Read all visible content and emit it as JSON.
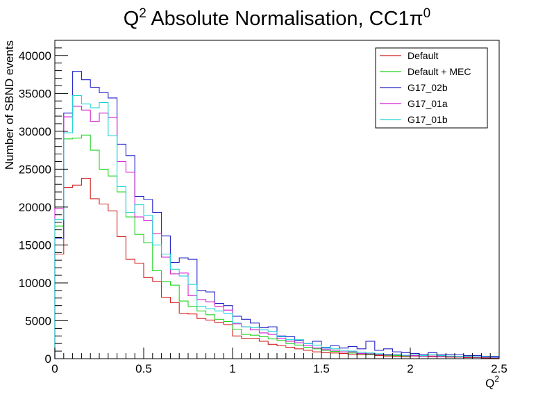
{
  "chart_data": {
    "type": "line",
    "step": true,
    "title_main": "Q",
    "title_sup": "2",
    "title_rest": " Absolute Normalisation, CC1π",
    "title_sup2": "0",
    "ylabel": "Number of SBND events",
    "xlabel_main": "Q",
    "xlabel_sup": "2",
    "xlim": [
      0,
      2.5
    ],
    "ylim": [
      0,
      42000
    ],
    "x_ticks": [
      "0",
      "0.5",
      "1",
      "1.5",
      "2",
      "2.5"
    ],
    "x_tick_values": [
      0,
      0.5,
      1,
      1.5,
      2,
      2.5
    ],
    "y_ticks": [
      "0",
      "5000",
      "10000",
      "15000",
      "20000",
      "25000",
      "30000",
      "35000",
      "40000"
    ],
    "y_tick_values": [
      0,
      5000,
      10000,
      15000,
      20000,
      25000,
      30000,
      35000,
      40000
    ],
    "bin_width": 0.05,
    "legend_position": "top-right",
    "series": [
      {
        "name": "Default",
        "color": "#d42222",
        "values": [
          13800,
          22600,
          22900,
          23800,
          21100,
          20400,
          19500,
          16100,
          13100,
          12600,
          10700,
          10200,
          8100,
          7400,
          6000,
          5900,
          5300,
          5100,
          4800,
          4500,
          3000,
          2700,
          2700,
          2300,
          1900,
          1700,
          1500,
          1300,
          1100,
          900,
          800,
          750,
          700,
          600,
          500,
          500,
          400,
          350,
          300,
          250,
          350,
          300,
          250,
          250,
          200,
          200,
          150,
          150,
          100,
          100
        ]
      },
      {
        "name": "Default + MEC",
        "color": "#22d422",
        "values": [
          17500,
          29000,
          29100,
          29500,
          27500,
          25000,
          24100,
          22000,
          18700,
          16400,
          15300,
          11600,
          10200,
          9700,
          7600,
          6900,
          6300,
          5800,
          5200,
          4900,
          3900,
          3200,
          3100,
          2900,
          2600,
          2400,
          2000,
          1800,
          1500,
          1300,
          1100,
          950,
          900,
          750,
          650,
          550,
          500,
          450,
          400,
          350,
          400,
          350,
          350,
          300,
          300,
          250,
          250,
          200,
          200,
          150
        ]
      },
      {
        "name": "G17_02b",
        "color": "#2222c8",
        "values": [
          15900,
          32400,
          37900,
          36800,
          35800,
          35100,
          34400,
          28300,
          26800,
          21400,
          21000,
          19300,
          16200,
          12700,
          13300,
          13100,
          9000,
          8800,
          7300,
          7000,
          5600,
          5200,
          4700,
          4100,
          4200,
          3000,
          2900,
          2400,
          2000,
          2300,
          1400,
          1700,
          1400,
          1600,
          1300,
          2300,
          1100,
          1300,
          900,
          800,
          700,
          600,
          800,
          500,
          600,
          500,
          400,
          400,
          300,
          300
        ]
      },
      {
        "name": "G17_01a",
        "color": "#d422d4",
        "values": [
          19800,
          31900,
          33300,
          32800,
          31300,
          32400,
          31800,
          26000,
          24600,
          18700,
          18200,
          16500,
          13400,
          11200,
          11300,
          8300,
          7800,
          7500,
          6900,
          6400,
          4600,
          4200,
          3800,
          3400,
          3200,
          2700,
          2300,
          2100,
          1700,
          1400,
          1200,
          1100,
          900,
          900,
          700,
          650,
          550,
          500,
          500,
          400,
          400,
          350,
          350,
          300,
          300,
          250,
          250,
          200,
          200,
          150
        ]
      },
      {
        "name": "G17_01b",
        "color": "#22d4d4",
        "values": [
          18400,
          29800,
          34700,
          33600,
          33100,
          33800,
          29400,
          22700,
          19300,
          20300,
          18900,
          15000,
          13800,
          11800,
          10900,
          9800,
          6900,
          6600,
          6300,
          6000,
          4700,
          4200,
          4100,
          3800,
          3600,
          2900,
          2500,
          2500,
          2000,
          1800,
          1500,
          1300,
          1100,
          1000,
          850,
          750,
          650,
          600,
          550,
          450,
          500,
          400,
          600,
          400,
          350,
          300,
          300,
          250,
          250,
          200
        ]
      }
    ]
  }
}
